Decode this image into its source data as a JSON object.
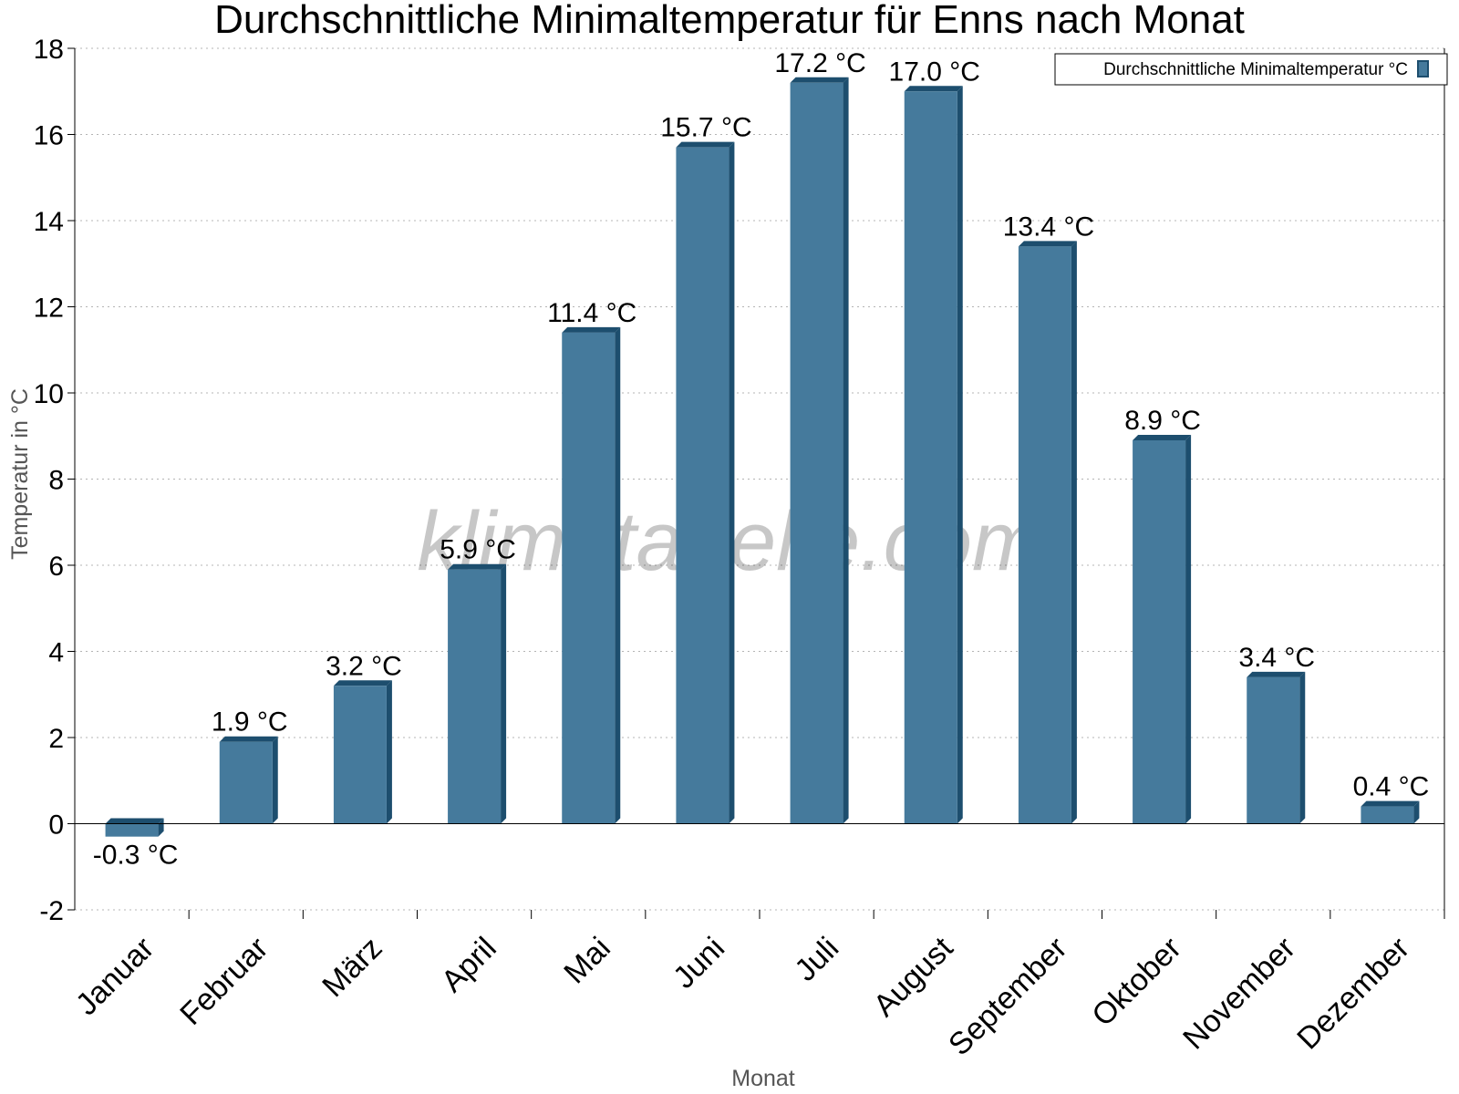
{
  "chart_data": {
    "type": "bar",
    "title": "Durchschnittliche Minimaltemperatur für Enns nach Monat",
    "xlabel": "Monat",
    "ylabel": "Temperatur in °C",
    "ylim": [
      -2,
      18
    ],
    "yticks": [
      -2,
      0,
      2,
      4,
      6,
      8,
      10,
      12,
      14,
      16,
      18
    ],
    "grid": true,
    "legend_position": "top-right",
    "categories": [
      "Januar",
      "Februar",
      "März",
      "April",
      "Mai",
      "Juni",
      "Juli",
      "August",
      "September",
      "Oktober",
      "November",
      "Dezember"
    ],
    "series": [
      {
        "name": "Durchschnittliche Minimaltemperatur °C",
        "values": [
          -0.3,
          1.9,
          3.2,
          5.9,
          11.4,
          15.7,
          17.2,
          17.0,
          13.4,
          8.9,
          3.4,
          0.4
        ],
        "labels": [
          "-0.3 °C",
          "1.9 °C",
          "3.2 °C",
          "5.9 °C",
          "11.4 °C",
          "15.7 °C",
          "17.2 °C",
          "17.0 °C",
          "13.4 °C",
          "8.9 °C",
          "3.4 °C",
          "0.4 °C"
        ],
        "color": "#457a9c",
        "edge_color": "#1d4e6e"
      }
    ]
  },
  "watermark": "klimatabelle.com"
}
